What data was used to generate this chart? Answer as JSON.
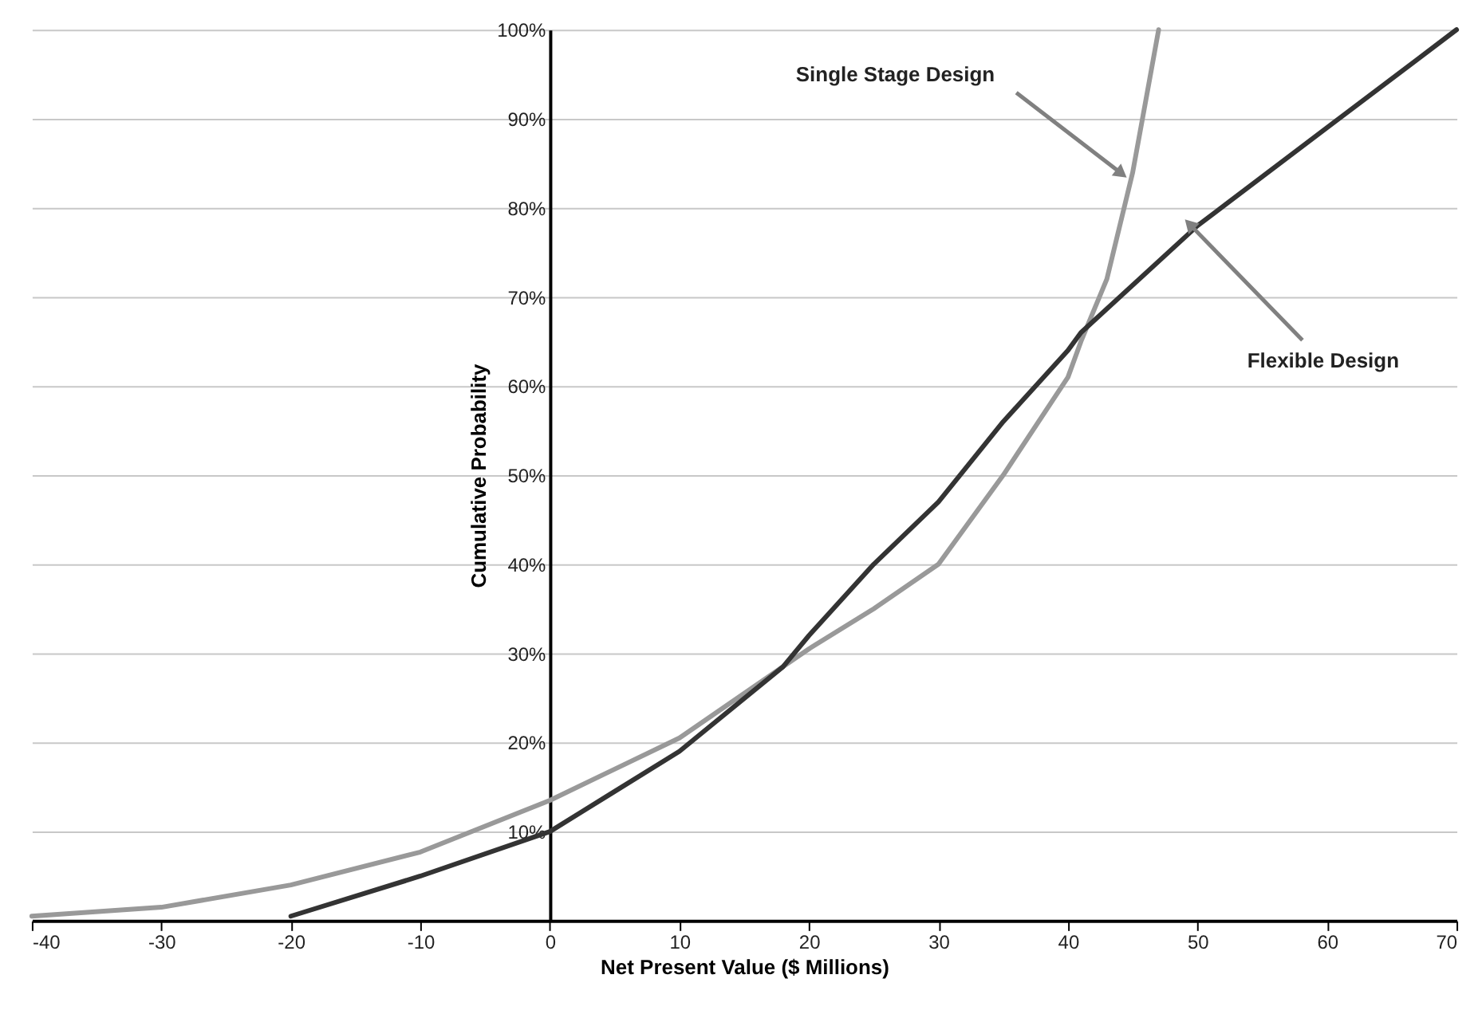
{
  "chart_data": {
    "type": "line",
    "xlabel": "Net Present Value ($ Millions)",
    "ylabel": "Cumulative Probability",
    "xlim": [
      -40,
      70
    ],
    "xticks": [
      -40,
      -30,
      -20,
      -10,
      0,
      10,
      20,
      30,
      40,
      50,
      60,
      70
    ],
    "ylim": [
      0,
      100
    ],
    "yticks": [
      {
        "value": 10,
        "label": "10%"
      },
      {
        "value": 20,
        "label": "20%"
      },
      {
        "value": 30,
        "label": "30%"
      },
      {
        "value": 40,
        "label": "40%"
      },
      {
        "value": 50,
        "label": "50%"
      },
      {
        "value": 60,
        "label": "60%"
      },
      {
        "value": 70,
        "label": "70%"
      },
      {
        "value": 80,
        "label": "80%"
      },
      {
        "value": 90,
        "label": "90%"
      },
      {
        "value": 100,
        "label": "100%"
      }
    ],
    "grid": "y",
    "legend": false,
    "marker": "none",
    "line_style": "solid",
    "series": [
      {
        "color": "#999999",
        "x": [
          -40,
          -30,
          -20,
          -10,
          0,
          10,
          18,
          20,
          25,
          30,
          35,
          40,
          41,
          43,
          45,
          46,
          47
        ],
        "values": [
          0.5,
          1.5,
          4,
          7.7,
          13.5,
          20.5,
          28.5,
          30.5,
          35,
          40,
          50,
          61,
          65,
          72,
          84,
          92,
          100
        ]
      },
      {
        "color": "#333333",
        "x": [
          -20,
          -10,
          0,
          10,
          18,
          20,
          25,
          30,
          35,
          40,
          41,
          50,
          60,
          70
        ],
        "values": [
          0.5,
          5,
          10,
          19,
          28.5,
          32,
          40,
          47,
          56,
          64,
          66,
          78,
          89,
          100
        ]
      }
    ],
    "annotations": [
      {
        "text": "Single Stage Design",
        "x": 44,
        "y": 84
      },
      {
        "text": "Flexible Design",
        "x": 49.5,
        "y": 78
      }
    ]
  }
}
